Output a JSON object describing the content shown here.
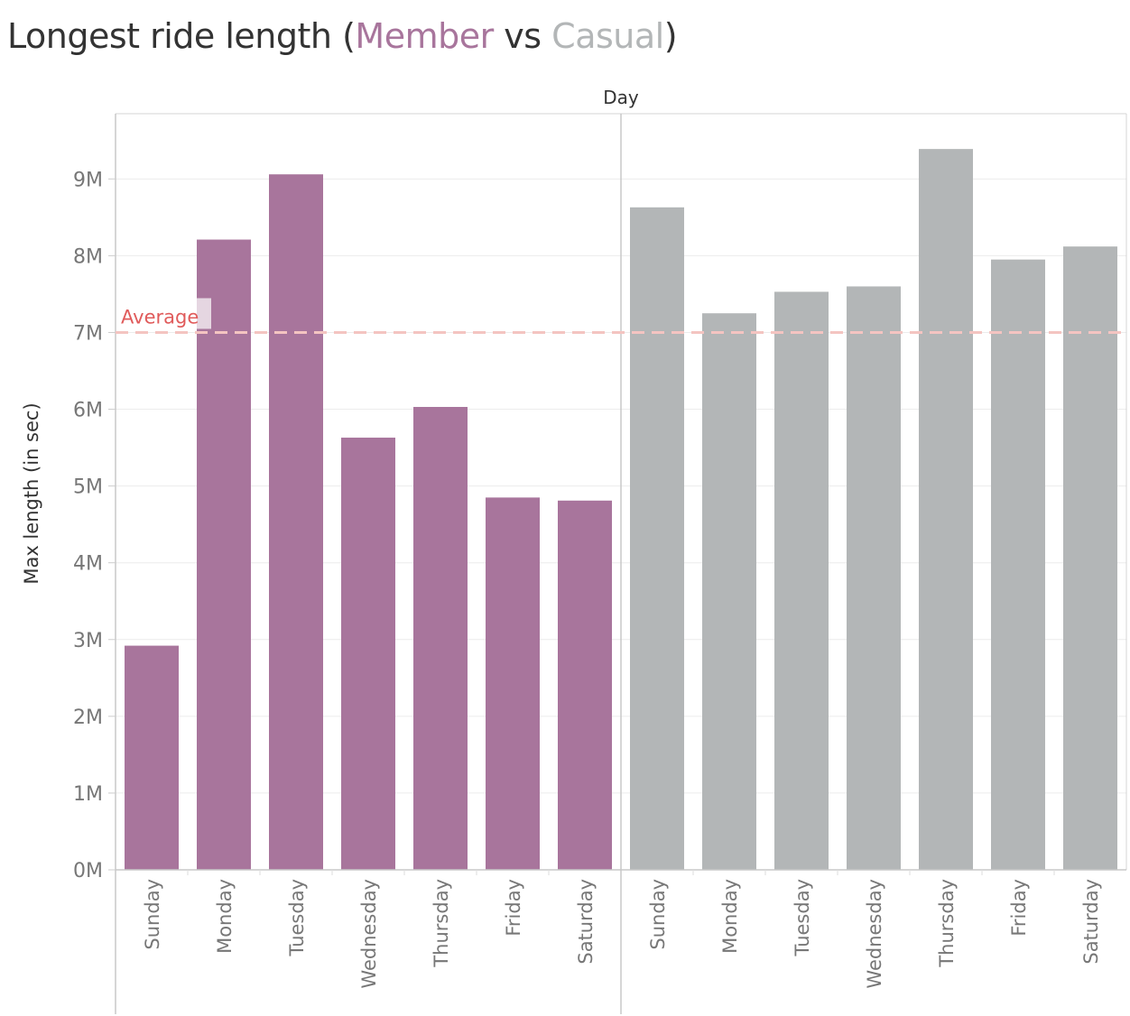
{
  "title": {
    "prefix": "Longest ride length (",
    "member": "Member",
    "middle": " vs ",
    "casual": "Casual",
    "suffix": ")"
  },
  "colors": {
    "member": "#a8759c",
    "casual": "#b3b6b7",
    "average": "#e05b5b",
    "average_line": "#f4c4c1",
    "grid": "#ececec",
    "axis_text": "#777777",
    "axis_title": "#333333"
  },
  "chart_data": {
    "type": "bar",
    "column_header": "Day",
    "ylabel": "Max length (in sec)",
    "ylim": [
      0,
      9850000
    ],
    "yticks": [
      0,
      1000000,
      2000000,
      3000000,
      4000000,
      5000000,
      6000000,
      7000000,
      8000000,
      9000000
    ],
    "ytick_labels": [
      "0M",
      "1M",
      "2M",
      "3M",
      "4M",
      "5M",
      "6M",
      "7M",
      "8M",
      "9M"
    ],
    "grid": true,
    "reference_line": {
      "label": "Average",
      "value": 7000000
    },
    "panels": [
      {
        "color_key": "member",
        "categories": [
          "Sunday",
          "Monday",
          "Tuesday",
          "Wednesday",
          "Thursday",
          "Friday",
          "Saturday"
        ],
        "values": [
          2920000,
          8210000,
          9060000,
          5630000,
          6030000,
          4850000,
          4810000
        ]
      },
      {
        "color_key": "casual",
        "categories": [
          "Sunday",
          "Monday",
          "Tuesday",
          "Wednesday",
          "Thursday",
          "Friday",
          "Saturday"
        ],
        "values": [
          8630000,
          7250000,
          7530000,
          7600000,
          9390000,
          7950000,
          8120000
        ]
      }
    ]
  }
}
